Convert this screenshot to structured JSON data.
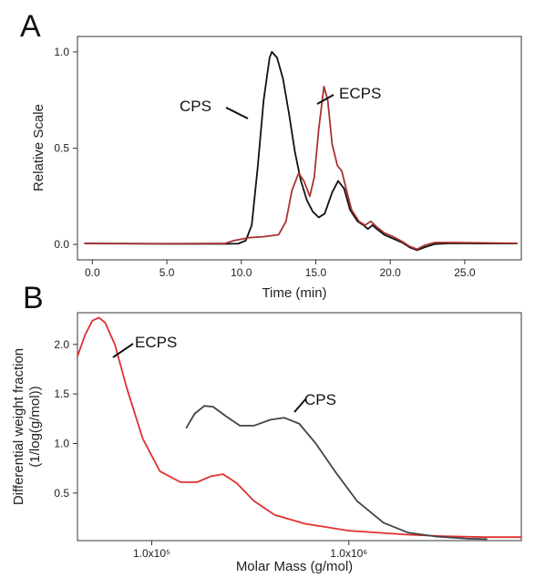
{
  "chart_data": [
    {
      "type": "line",
      "panel_label": "A",
      "xlabel": "Time (min)",
      "ylabel": "Relative Scale",
      "xlim": [
        -1,
        28.8
      ],
      "ylim": [
        -0.08,
        1.08
      ],
      "x_ticks": [
        {
          "value": 0,
          "label": "0.0"
        },
        {
          "value": 5,
          "label": "5.0"
        },
        {
          "value": 10,
          "label": "10.0"
        },
        {
          "value": 15,
          "label": "15.0"
        },
        {
          "value": 20,
          "label": "20.0"
        },
        {
          "value": 25,
          "label": "25.0"
        }
      ],
      "y_ticks": [
        {
          "value": 0,
          "label": "0.0"
        },
        {
          "value": 0.5,
          "label": "0.5"
        },
        {
          "value": 1.0,
          "label": "1.0"
        }
      ],
      "grid": false,
      "series": [
        {
          "name": "CPS",
          "color": "#111111",
          "points": [
            [
              -0.5,
              0.005
            ],
            [
              5,
              0.003
            ],
            [
              9,
              0.003
            ],
            [
              9.8,
              0.004
            ],
            [
              10.3,
              0.02
            ],
            [
              10.7,
              0.1
            ],
            [
              11.1,
              0.4
            ],
            [
              11.5,
              0.75
            ],
            [
              11.9,
              0.97
            ],
            [
              12.05,
              1.0
            ],
            [
              12.4,
              0.97
            ],
            [
              12.8,
              0.86
            ],
            [
              13.2,
              0.68
            ],
            [
              13.6,
              0.48
            ],
            [
              14.0,
              0.33
            ],
            [
              14.4,
              0.23
            ],
            [
              14.8,
              0.17
            ],
            [
              15.2,
              0.14
            ],
            [
              15.6,
              0.16
            ],
            [
              16.1,
              0.27
            ],
            [
              16.5,
              0.33
            ],
            [
              16.9,
              0.29
            ],
            [
              17.3,
              0.18
            ],
            [
              17.8,
              0.12
            ],
            [
              18.2,
              0.1
            ],
            [
              18.5,
              0.08
            ],
            [
              18.8,
              0.1
            ],
            [
              19.1,
              0.08
            ],
            [
              19.6,
              0.05
            ],
            [
              20.2,
              0.03
            ],
            [
              20.8,
              0.01
            ],
            [
              21.3,
              -0.015
            ],
            [
              21.8,
              -0.03
            ],
            [
              22.3,
              -0.015
            ],
            [
              23,
              0.002
            ],
            [
              24,
              0.006
            ],
            [
              26,
              0.005
            ],
            [
              28.5,
              0.005
            ]
          ]
        },
        {
          "name": "ECPS",
          "color": "#a83232",
          "points": [
            [
              -0.5,
              0.005
            ],
            [
              5,
              0.004
            ],
            [
              8.9,
              0.005
            ],
            [
              9.5,
              0.02
            ],
            [
              10.5,
              0.035
            ],
            [
              11.5,
              0.04
            ],
            [
              12.5,
              0.05
            ],
            [
              13.0,
              0.12
            ],
            [
              13.4,
              0.28
            ],
            [
              13.85,
              0.37
            ],
            [
              14.2,
              0.33
            ],
            [
              14.6,
              0.25
            ],
            [
              14.9,
              0.35
            ],
            [
              15.2,
              0.6
            ],
            [
              15.55,
              0.82
            ],
            [
              15.8,
              0.75
            ],
            [
              16.1,
              0.52
            ],
            [
              16.45,
              0.41
            ],
            [
              16.75,
              0.38
            ],
            [
              17.0,
              0.3
            ],
            [
              17.4,
              0.18
            ],
            [
              17.9,
              0.12
            ],
            [
              18.3,
              0.1
            ],
            [
              18.7,
              0.12
            ],
            [
              19.1,
              0.09
            ],
            [
              19.6,
              0.06
            ],
            [
              20.2,
              0.04
            ],
            [
              20.8,
              0.015
            ],
            [
              21.3,
              -0.01
            ],
            [
              21.8,
              -0.025
            ],
            [
              22.3,
              -0.005
            ],
            [
              23,
              0.01
            ],
            [
              24,
              0.01
            ],
            [
              26,
              0.008
            ],
            [
              28.5,
              0.006
            ]
          ]
        }
      ]
    },
    {
      "type": "line",
      "panel_label": "B",
      "xlabel": "Molar Mass (g/mol)",
      "ylabel": "Differential weight fraction",
      "ylabel2": "(1/log(g/mol))",
      "xscale": "log",
      "xlim": [
        42000,
        7500000
      ],
      "ylim": [
        0.02,
        2.32
      ],
      "x_ticks": [
        {
          "value": 100000,
          "label": "1.0x10⁵"
        },
        {
          "value": 1000000,
          "label": "1.0x10⁶"
        }
      ],
      "y_ticks": [
        {
          "value": 0.5,
          "label": "0.5"
        },
        {
          "value": 1.0,
          "label": "1.0"
        },
        {
          "value": 1.5,
          "label": "1.5"
        },
        {
          "value": 2.0,
          "label": "2.0"
        }
      ],
      "grid": false,
      "series": [
        {
          "name": "ECPS",
          "color": "#e03030",
          "points": [
            [
              42000,
              1.88
            ],
            [
              46000,
              2.1
            ],
            [
              50000,
              2.24
            ],
            [
              54000,
              2.27
            ],
            [
              58000,
              2.22
            ],
            [
              65000,
              2.0
            ],
            [
              75000,
              1.55
            ],
            [
              90000,
              1.05
            ],
            [
              110000,
              0.72
            ],
            [
              140000,
              0.61
            ],
            [
              170000,
              0.61
            ],
            [
              200000,
              0.67
            ],
            [
              230000,
              0.69
            ],
            [
              270000,
              0.6
            ],
            [
              330000,
              0.42
            ],
            [
              420000,
              0.28
            ],
            [
              600000,
              0.19
            ],
            [
              1000000,
              0.12
            ],
            [
              2000000,
              0.08
            ],
            [
              3000000,
              0.065
            ],
            [
              5000000,
              0.055
            ],
            [
              7500000,
              0.055
            ]
          ]
        },
        {
          "name": "CPS",
          "color": "#444444",
          "points": [
            [
              150000,
              1.16
            ],
            [
              165000,
              1.3
            ],
            [
              185000,
              1.38
            ],
            [
              205000,
              1.37
            ],
            [
              240000,
              1.27
            ],
            [
              280000,
              1.18
            ],
            [
              330000,
              1.18
            ],
            [
              400000,
              1.24
            ],
            [
              470000,
              1.26
            ],
            [
              560000,
              1.2
            ],
            [
              680000,
              1.0
            ],
            [
              850000,
              0.72
            ],
            [
              1100000,
              0.42
            ],
            [
              1500000,
              0.2
            ],
            [
              2000000,
              0.1
            ],
            [
              2800000,
              0.06
            ],
            [
              4000000,
              0.04
            ],
            [
              5000000,
              0.035
            ]
          ]
        }
      ]
    }
  ]
}
